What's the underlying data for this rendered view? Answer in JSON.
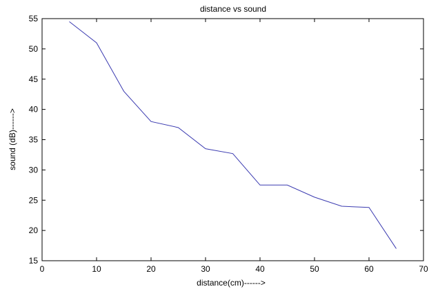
{
  "chart_data": {
    "type": "line",
    "title": "distance vs sound",
    "xlabel": "distance(cm)------>",
    "ylabel": "sound (dB)------>",
    "xlim": [
      0,
      70
    ],
    "ylim": [
      15,
      55
    ],
    "xticks": [
      "0",
      "10",
      "20",
      "30",
      "40",
      "50",
      "60",
      "70"
    ],
    "yticks": [
      "15",
      "20",
      "25",
      "30",
      "35",
      "40",
      "45",
      "50",
      "55"
    ],
    "grid": false,
    "series": [
      {
        "color": "#3a3ab0",
        "x": [
          5,
          10,
          15,
          20,
          25,
          30,
          35,
          40,
          45,
          50,
          55,
          60,
          65
        ],
        "y": [
          54.5,
          51,
          43,
          38,
          37,
          33.5,
          32.7,
          27.5,
          27.5,
          25.5,
          24,
          23.8,
          17
        ]
      }
    ]
  }
}
